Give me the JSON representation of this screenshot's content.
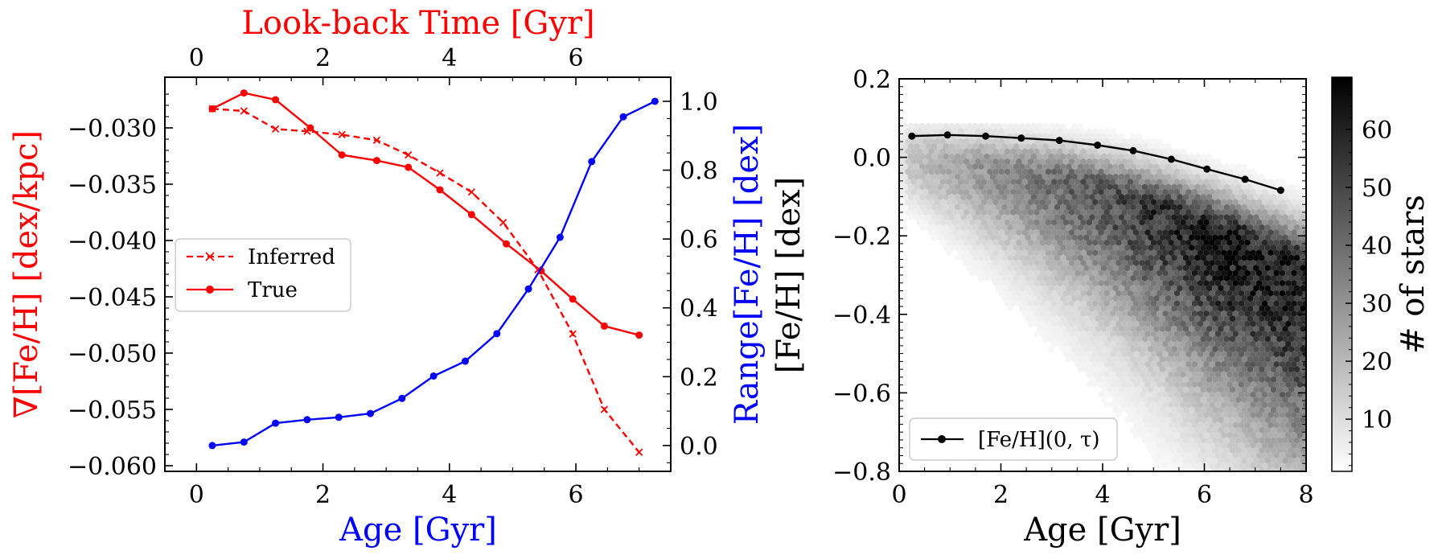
{
  "colors": {
    "red": "#ff0000",
    "blue": "#0000ff",
    "black": "#000000"
  },
  "chart_data": [
    {
      "type": "line",
      "xlabel": "Age [Gyr]",
      "top_xlabel": "Look-back Time [Gyr]",
      "ylabel": "∇[Fe/H] [dex/kpc]",
      "y2label": "Range[Fe/H] [dex]",
      "xlim": [
        -0.5,
        7.5
      ],
      "ylim": [
        -0.0605,
        -0.0255
      ],
      "y2lim": [
        -0.075,
        1.07
      ],
      "x_ticks": [
        0,
        2,
        4,
        6
      ],
      "top_x_ticks": [
        0,
        2,
        4,
        6
      ],
      "y_ticks": [
        -0.03,
        -0.035,
        -0.04,
        -0.045,
        -0.05,
        -0.055,
        -0.06
      ],
      "y_tick_labels": [
        "−0.030",
        "−0.035",
        "−0.040",
        "−0.045",
        "−0.050",
        "−0.055",
        "−0.060"
      ],
      "y2_ticks": [
        0.0,
        0.2,
        0.4,
        0.6,
        0.8,
        1.0
      ],
      "y2_tick_labels": [
        "0.0",
        "0.2",
        "0.4",
        "0.6",
        "0.8",
        "1.0"
      ],
      "legend_position": "center-left",
      "series": [
        {
          "name": "Inferred",
          "axis": "left",
          "color": "#ff0000",
          "style": "dashed",
          "marker": "x",
          "x": [
            0.25,
            0.75,
            1.25,
            1.75,
            2.3,
            2.85,
            3.35,
            3.85,
            4.35,
            4.85,
            5.4,
            5.95,
            6.45,
            7.0
          ],
          "y": [
            -0.0283,
            -0.0285,
            -0.0301,
            -0.0303,
            -0.0306,
            -0.0311,
            -0.0324,
            -0.034,
            -0.0357,
            -0.0384,
            -0.0426,
            -0.0483,
            -0.055,
            -0.0588
          ]
        },
        {
          "name": "True",
          "axis": "left",
          "color": "#ff0000",
          "style": "solid",
          "marker": "o",
          "x": [
            0.25,
            0.75,
            1.25,
            1.8,
            2.3,
            2.85,
            3.35,
            3.85,
            4.35,
            4.9,
            5.45,
            5.95,
            6.45,
            7.0
          ],
          "y": [
            -0.0283,
            -0.0269,
            -0.0275,
            -0.03,
            -0.0324,
            -0.0329,
            -0.0335,
            -0.0355,
            -0.0377,
            -0.0403,
            -0.0427,
            -0.0452,
            -0.0476,
            -0.0484
          ]
        },
        {
          "axis": "right",
          "color": "#0000ff",
          "style": "solid",
          "marker": "o",
          "x": [
            0.25,
            0.75,
            1.25,
            1.75,
            2.25,
            2.75,
            3.25,
            3.75,
            4.25,
            4.75,
            5.25,
            5.75,
            6.25,
            6.75,
            7.25
          ],
          "y": [
            0.0,
            0.01,
            0.065,
            0.075,
            0.082,
            0.093,
            0.137,
            0.202,
            0.245,
            0.325,
            0.455,
            0.605,
            0.825,
            0.955,
            1.0
          ]
        }
      ]
    },
    {
      "type": "heatmap",
      "xlabel": "Age [Gyr]",
      "ylabel": "[Fe/H] [dex]",
      "colorbar_label": "# of stars",
      "xlim": [
        0,
        8
      ],
      "ylim": [
        -0.8,
        0.2
      ],
      "x_ticks": [
        0,
        2,
        4,
        6,
        8
      ],
      "y_ticks": [
        0.2,
        0.0,
        -0.2,
        -0.4,
        -0.6,
        -0.8
      ],
      "y_tick_labels": [
        "0.2",
        "0.0",
        "−0.2",
        "−0.4",
        "−0.6",
        "−0.8"
      ],
      "colorbar_range": [
        1,
        69
      ],
      "colorbar_ticks": [
        10,
        20,
        30,
        40,
        50,
        60
      ],
      "legend_position": "lower-left",
      "series": [
        {
          "name": "[Fe/H](0, τ)",
          "color": "#000000",
          "style": "solid",
          "marker": "o",
          "x": [
            0.25,
            0.95,
            1.7,
            2.4,
            3.15,
            3.9,
            4.6,
            5.35,
            6.05,
            6.8,
            7.5
          ],
          "y": [
            0.054,
            0.057,
            0.054,
            0.049,
            0.043,
            0.031,
            0.017,
            -0.005,
            -0.03,
            -0.056,
            -0.084
          ]
        }
      ]
    }
  ]
}
